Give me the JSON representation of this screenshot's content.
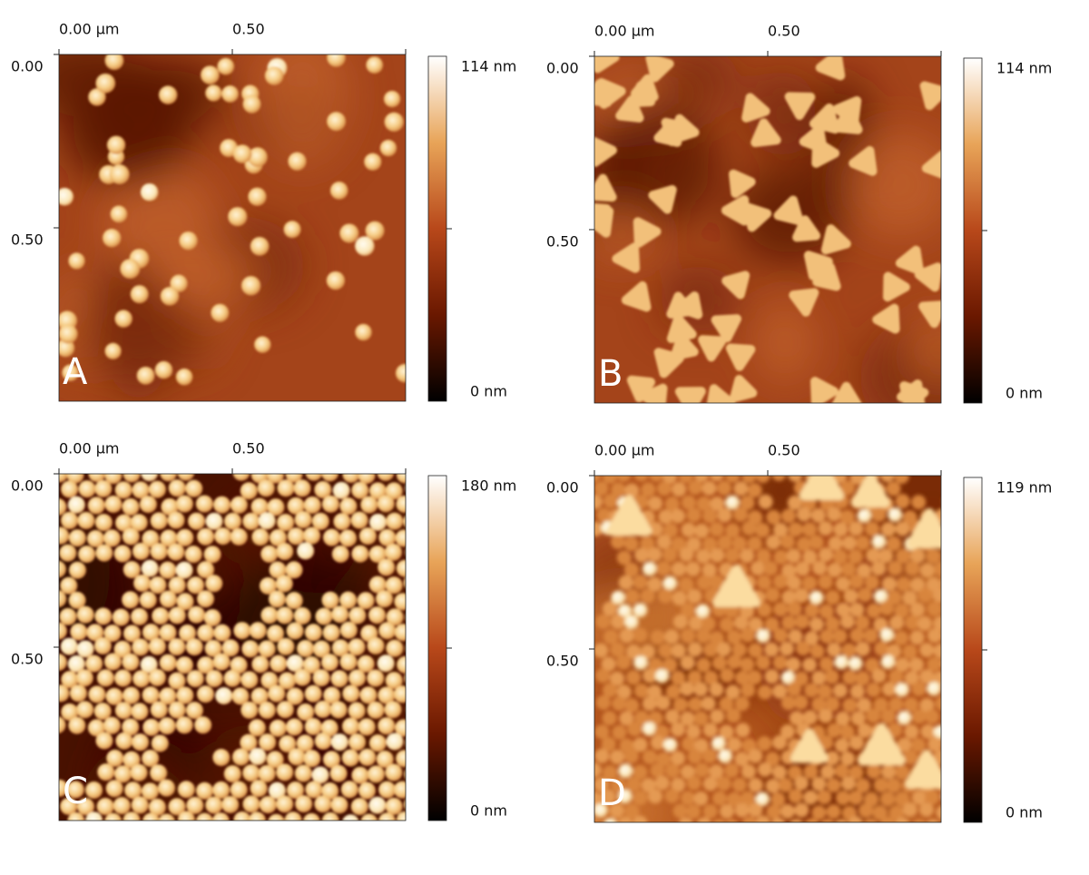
{
  "panels": [
    {
      "label": "A",
      "x_ticks": [
        "0.00 µm",
        "0.50"
      ],
      "y_ticks": [
        "0.00",
        "0.50"
      ],
      "colorbar_max": "114 nm",
      "colorbar_min": "0 nm"
    },
    {
      "label": "B",
      "x_ticks": [
        "0.00 µm",
        "0.50"
      ],
      "y_ticks": [
        "0.00",
        "0.50"
      ],
      "colorbar_max": "114 nm",
      "colorbar_min": "0 nm"
    },
    {
      "label": "C",
      "x_ticks": [
        "0.00 µm",
        "0.50"
      ],
      "y_ticks": [
        "0.00",
        "0.50"
      ],
      "colorbar_max": "180 nm",
      "colorbar_min": "0 nm"
    },
    {
      "label": "D",
      "x_ticks": [
        "0.00 µm",
        "0.50"
      ],
      "y_ticks": [
        "0.00",
        "0.50"
      ],
      "colorbar_max": "119 nm",
      "colorbar_min": "0 nm"
    }
  ]
}
